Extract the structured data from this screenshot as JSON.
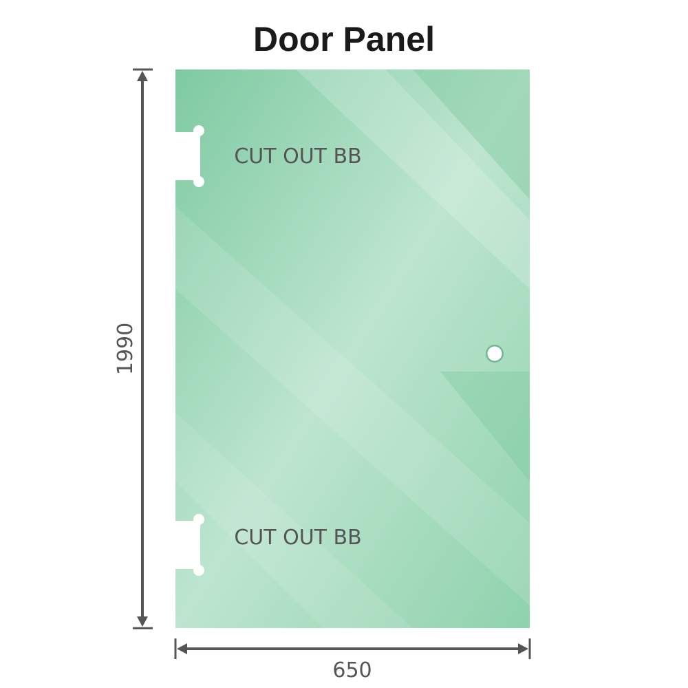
{
  "title": "Door Panel",
  "cutouts": [
    {
      "label": "CUT OUT BB"
    },
    {
      "label": "CUT OUT BB"
    }
  ],
  "dimensions": {
    "height": "1990",
    "width": "650"
  },
  "colors": {
    "glass": "#86cfa8",
    "glass_light": "#bfe6d1",
    "dimension_line": "#555555"
  }
}
